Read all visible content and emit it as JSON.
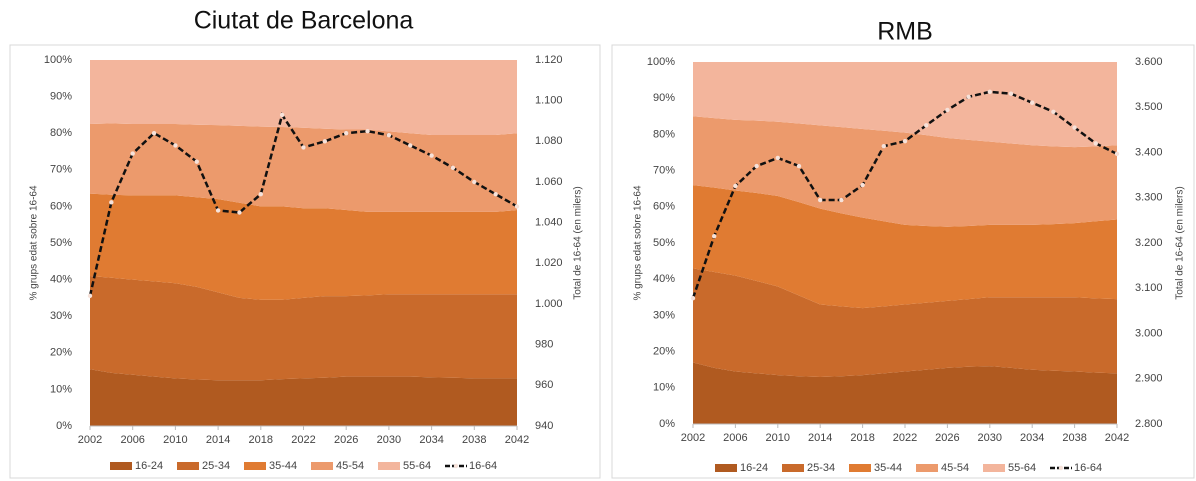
{
  "chart_data": [
    {
      "type": "area",
      "title": "Ciutat de Barcelona",
      "ylabel": "% grups edat sobre 16-64",
      "y2label": "Total de 16-64 (en milers)",
      "x": [
        2002,
        2004,
        2006,
        2008,
        2010,
        2012,
        2014,
        2016,
        2018,
        2020,
        2022,
        2024,
        2026,
        2028,
        2030,
        2032,
        2034,
        2036,
        2038,
        2040,
        2042
      ],
      "xlim": [
        2002,
        2042
      ],
      "xticks": [
        2002,
        2006,
        2010,
        2014,
        2018,
        2022,
        2026,
        2030,
        2034,
        2038,
        2042
      ],
      "ylim": [
        0,
        100
      ],
      "yticks": [
        {
          "value": 0,
          "label": "0%"
        },
        {
          "value": 10,
          "label": "10%"
        },
        {
          "value": 20,
          "label": "20%"
        },
        {
          "value": 30,
          "label": "30%"
        },
        {
          "value": 40,
          "label": "40%"
        },
        {
          "value": 50,
          "label": "50%"
        },
        {
          "value": 60,
          "label": "60%"
        },
        {
          "value": 70,
          "label": "70%"
        },
        {
          "value": 80,
          "label": "80%"
        },
        {
          "value": 90,
          "label": "90%"
        },
        {
          "value": 100,
          "label": "100%"
        }
      ],
      "y2lim": [
        940,
        1120
      ],
      "y2ticks": [
        940,
        960,
        980,
        {
          "value": 1000,
          "label": "1.000"
        },
        {
          "value": 1020,
          "label": "1.020"
        },
        {
          "value": 1040,
          "label": "1.040"
        },
        {
          "value": 1060,
          "label": "1.060"
        },
        {
          "value": 1080,
          "label": "1.080"
        },
        {
          "value": 1100,
          "label": "1.100"
        },
        {
          "value": 1120,
          "label": "1.120"
        }
      ],
      "legend": "bottom",
      "series": [
        {
          "name": "16-24",
          "color": "#b05a20",
          "values": [
            15.5,
            14.5,
            14,
            13.5,
            13,
            12.7,
            12.5,
            12.5,
            12.5,
            12.8,
            13,
            13.2,
            13.5,
            13.5,
            13.5,
            13.5,
            13.3,
            13.2,
            13,
            13,
            13
          ]
        },
        {
          "name": "25-34",
          "color": "#c96a2b",
          "values": [
            25.5,
            26,
            26,
            26,
            26,
            25.3,
            24,
            22.5,
            22,
            21.7,
            22,
            22.3,
            22,
            22.2,
            22.5,
            22.5,
            22.7,
            22.8,
            23,
            23,
            23
          ]
        },
        {
          "name": "35-44",
          "color": "#e07b32",
          "values": [
            22.5,
            22.7,
            23,
            23.5,
            24,
            24.5,
            25.5,
            26,
            25.5,
            25.5,
            24.5,
            24,
            23.5,
            22.8,
            22.5,
            22.5,
            22.5,
            22.5,
            22.5,
            22.5,
            23
          ]
        },
        {
          "name": "45-54",
          "color": "#ec9a6c",
          "values": [
            19,
            19.5,
            19.5,
            19.5,
            19.5,
            19.8,
            20.2,
            21,
            21.8,
            21.7,
            22,
            21.7,
            22,
            22.5,
            22,
            21.5,
            21,
            21,
            21,
            21,
            21
          ]
        },
        {
          "name": "55-64",
          "color": "#f3b59c",
          "values": [
            17.5,
            17.3,
            17.5,
            17.5,
            17.5,
            17.7,
            17.8,
            18,
            18.2,
            18.3,
            18.5,
            18.8,
            19,
            19,
            19.5,
            20,
            20.5,
            20.5,
            20.5,
            20.5,
            20
          ]
        },
        {
          "name": "16-64",
          "color": "#111111",
          "type": "line",
          "axis": "y2",
          "values": [
            1004,
            1050,
            1074,
            1084,
            1078,
            1070,
            1046,
            1045,
            1054,
            1093,
            1077,
            1080,
            1084,
            1085,
            1083,
            1078,
            1073,
            1067,
            1060,
            1054,
            1048
          ]
        }
      ]
    },
    {
      "type": "area",
      "title": "RMB",
      "ylabel": "% grups edat sobre 16-64",
      "y2label": "Total de 16-64 (en milers)",
      "x": [
        2002,
        2004,
        2006,
        2008,
        2010,
        2012,
        2014,
        2016,
        2018,
        2020,
        2022,
        2024,
        2026,
        2028,
        2030,
        2032,
        2034,
        2036,
        2038,
        2040,
        2042
      ],
      "xlim": [
        2002,
        2042
      ],
      "xticks": [
        2002,
        2006,
        2010,
        2014,
        2018,
        2022,
        2026,
        2030,
        2034,
        2038,
        2042
      ],
      "ylim": [
        0,
        100
      ],
      "yticks": [
        {
          "value": 0,
          "label": "0%"
        },
        {
          "value": 10,
          "label": "10%"
        },
        {
          "value": 20,
          "label": "20%"
        },
        {
          "value": 30,
          "label": "30%"
        },
        {
          "value": 40,
          "label": "40%"
        },
        {
          "value": 50,
          "label": "50%"
        },
        {
          "value": 60,
          "label": "60%"
        },
        {
          "value": 70,
          "label": "70%"
        },
        {
          "value": 80,
          "label": "80%"
        },
        {
          "value": 90,
          "label": "90%"
        },
        {
          "value": 100,
          "label": "100%"
        }
      ],
      "y2lim": [
        2800,
        3600
      ],
      "y2ticks": [
        {
          "value": 2800,
          "label": "2.800"
        },
        {
          "value": 2900,
          "label": "2.900"
        },
        {
          "value": 3000,
          "label": "3.000"
        },
        {
          "value": 3100,
          "label": "3.100"
        },
        {
          "value": 3200,
          "label": "3.200"
        },
        {
          "value": 3300,
          "label": "3.300"
        },
        {
          "value": 3400,
          "label": "3.400"
        },
        {
          "value": 3500,
          "label": "3.500"
        },
        {
          "value": 3600,
          "label": "3.600"
        }
      ],
      "legend": "bottom",
      "series": [
        {
          "name": "16-24",
          "color": "#b05a20",
          "values": [
            17,
            15.5,
            14.5,
            14,
            13.5,
            13.2,
            13,
            13.2,
            13.5,
            14,
            14.5,
            15,
            15.5,
            15.8,
            16,
            15.5,
            15,
            14.7,
            14.5,
            14.2,
            14
          ]
        },
        {
          "name": "25-34",
          "color": "#c96a2b",
          "values": [
            26,
            26.5,
            26.5,
            25.5,
            24.5,
            22.3,
            20,
            19.3,
            18.5,
            18.5,
            18.5,
            18.5,
            18.5,
            18.7,
            19,
            19.5,
            20,
            20.3,
            20.5,
            20.5,
            20.5
          ]
        },
        {
          "name": "35-44",
          "color": "#e07b32",
          "values": [
            23,
            23.3,
            23.5,
            24.3,
            25,
            25.8,
            26.5,
            25.7,
            25,
            23.5,
            22,
            21.2,
            20.5,
            20.2,
            20,
            20,
            20,
            20.2,
            20.5,
            21.3,
            22
          ]
        },
        {
          "name": "45-54",
          "color": "#ec9a6c",
          "values": [
            19,
            19.2,
            19.5,
            20,
            20.5,
            21.7,
            23,
            23.8,
            24.5,
            25,
            25.5,
            25.1,
            24.5,
            23.8,
            23,
            22.5,
            22,
            21.5,
            21,
            20.7,
            20.5
          ]
        },
        {
          "name": "55-64",
          "color": "#f3b59c",
          "values": [
            15,
            15.5,
            16,
            16.2,
            16.5,
            17,
            17.5,
            18,
            18.5,
            19,
            19.5,
            20.2,
            21,
            21.5,
            22,
            22.5,
            23,
            23.3,
            23.5,
            23.3,
            23
          ]
        },
        {
          "name": "16-64",
          "color": "#111111",
          "type": "line",
          "axis": "y2",
          "values": [
            3078,
            3215,
            3326,
            3370,
            3388,
            3370,
            3295,
            3295,
            3328,
            3414,
            3425,
            3460,
            3494,
            3523,
            3534,
            3530,
            3510,
            3490,
            3455,
            3420,
            3397
          ]
        }
      ]
    }
  ]
}
